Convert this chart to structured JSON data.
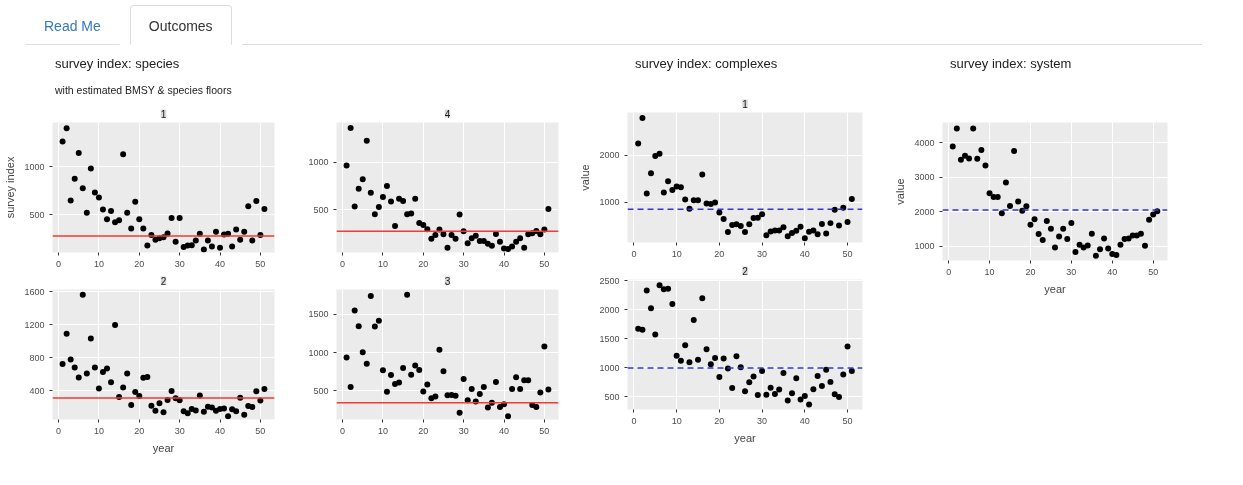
{
  "chart_data": [
    {
      "type": "scatter",
      "title": "1",
      "annotations": [
        "Read Me",
        "Outcomes",
        "survey index: species",
        "with estimated BMSY & species floors"
      ],
      "ylabel": "survey index",
      "marker": "circle",
      "grid": true,
      "xlim": [
        -1.5,
        53.5
      ],
      "xticks": [
        0,
        10,
        20,
        30,
        40,
        50
      ],
      "ylim": [
        110,
        1460
      ],
      "yticks": [
        500,
        1000
      ],
      "x": [
        1,
        2,
        3,
        4,
        5,
        6,
        7,
        8,
        9,
        10,
        11,
        12,
        13,
        14,
        15,
        16,
        17,
        18,
        19,
        20,
        21,
        22,
        23,
        24,
        25,
        26,
        27,
        28,
        29,
        30,
        31,
        32,
        33,
        34,
        35,
        36,
        37,
        38,
        39,
        40,
        41,
        42,
        43,
        44,
        45,
        46,
        47,
        48,
        49,
        50,
        51
      ],
      "series": [
        {
          "color": "#000000",
          "values": [
            1262,
            1400,
            649,
            877,
            1142,
            778,
            523,
            983,
            732,
            682,
            556,
            454,
            540,
            424,
            444,
            1129,
            523,
            358,
            636,
            454,
            358,
            182,
            291,
            242,
            258,
            268,
            308,
            467,
            222,
            467,
            166,
            182,
            185,
            235,
            305,
            142,
            235,
            172,
            325,
            159,
            298,
            305,
            172,
            348,
            242,
            325,
            589,
            235,
            646,
            291,
            563
          ]
        }
      ],
      "ref_lines": [
        {
          "axis": "y",
          "value": 282,
          "color": "#f03c32",
          "line_style": "solid"
        }
      ]
    },
    {
      "type": "scatter",
      "title": "4",
      "marker": "circle",
      "grid": true,
      "xlim": [
        -1.5,
        53.5
      ],
      "xticks": [
        0,
        10,
        20,
        30,
        40,
        50
      ],
      "ylim": [
        50,
        1416
      ],
      "yticks": [
        500,
        1000
      ],
      "x": [
        1,
        2,
        3,
        4,
        5,
        6,
        7,
        8,
        9,
        10,
        11,
        12,
        13,
        14,
        15,
        16,
        17,
        18,
        19,
        20,
        21,
        22,
        23,
        24,
        25,
        26,
        27,
        28,
        29,
        30,
        31,
        32,
        33,
        34,
        35,
        36,
        37,
        38,
        39,
        40,
        41,
        42,
        43,
        44,
        45,
        46,
        47,
        48,
        49,
        50,
        51
      ],
      "series": [
        {
          "color": "#000000",
          "values": [
            963,
            1359,
            534,
            721,
            819,
            1225,
            678,
            453,
            527,
            634,
            748,
            587,
            329,
            614,
            591,
            453,
            460,
            614,
            359,
            339,
            295,
            195,
            235,
            292,
            242,
            101,
            235,
            195,
            450,
            272,
            148,
            201,
            225,
            171,
            171,
            141,
            121,
            245,
            164,
            91,
            87,
            114,
            164,
            201,
            101,
            242,
            252,
            275,
            242,
            292,
            507
          ]
        }
      ],
      "ref_lines": [
        {
          "axis": "y",
          "value": 272,
          "color": "#f03c32",
          "line_style": "solid"
        }
      ]
    },
    {
      "type": "scatter",
      "title": "2",
      "xlabel": "year",
      "marker": "circle",
      "grid": true,
      "xlim": [
        -1.5,
        53.5
      ],
      "xticks": [
        0,
        10,
        20,
        30,
        40,
        50
      ],
      "ylim": [
        50,
        1625
      ],
      "yticks": [
        400,
        800,
        1200,
        1600
      ],
      "x": [
        1,
        2,
        3,
        4,
        5,
        6,
        7,
        8,
        9,
        10,
        11,
        12,
        13,
        14,
        15,
        16,
        17,
        18,
        19,
        20,
        21,
        22,
        23,
        24,
        25,
        26,
        27,
        28,
        29,
        30,
        31,
        32,
        33,
        34,
        35,
        36,
        37,
        38,
        39,
        40,
        41,
        42,
        43,
        44,
        45,
        46,
        47,
        48,
        49,
        50,
        51
      ],
      "series": [
        {
          "color": "#000000",
          "values": [
            723,
            1089,
            778,
            680,
            560,
            1561,
            606,
            1031,
            680,
            427,
            626,
            669,
            501,
            1195,
            322,
            439,
            606,
            225,
            384,
            334,
            556,
            564,
            217,
            155,
            248,
            139,
            287,
            396,
            307,
            283,
            151,
            127,
            178,
            159,
            342,
            143,
            205,
            194,
            155,
            178,
            182,
            88,
            174,
            151,
            314,
            108,
            213,
            201,
            392,
            279,
            419
          ]
        }
      ],
      "ref_lines": [
        {
          "axis": "y",
          "value": 310,
          "color": "#f03c32",
          "line_style": "solid"
        }
      ]
    },
    {
      "type": "scatter",
      "title": "3",
      "marker": "circle",
      "grid": true,
      "xlim": [
        -1.5,
        53.5
      ],
      "xticks": [
        0,
        10,
        20,
        30,
        40,
        50
      ],
      "ylim": [
        125,
        1825
      ],
      "yticks": [
        500,
        1000,
        1500
      ],
      "x": [
        1,
        2,
        3,
        4,
        5,
        6,
        7,
        8,
        9,
        10,
        11,
        12,
        13,
        14,
        15,
        16,
        17,
        18,
        19,
        20,
        21,
        22,
        23,
        24,
        25,
        26,
        27,
        28,
        29,
        30,
        31,
        32,
        33,
        34,
        35,
        36,
        37,
        38,
        39,
        40,
        41,
        42,
        43,
        44,
        45,
        46,
        47,
        48,
        49,
        50,
        51
      ],
      "series": [
        {
          "color": "#000000",
          "values": [
            937,
            551,
            1550,
            1344,
            1004,
            853,
            1739,
            1340,
            1416,
            769,
            488,
            706,
            588,
            609,
            798,
            1756,
            710,
            832,
            773,
            492,
            584,
            404,
            425,
            1038,
            756,
            441,
            446,
            437,
            214,
            656,
            378,
            525,
            362,
            458,
            551,
            282,
            345,
            614,
            290,
            324,
            168,
            525,
            677,
            525,
            639,
            639,
            315,
            290,
            479,
            1080,
            517
          ]
        }
      ],
      "ref_lines": [
        {
          "axis": "y",
          "value": 345,
          "color": "#f03c32",
          "line_style": "solid"
        }
      ]
    },
    {
      "type": "scatter",
      "title": "1",
      "annotations": [
        "survey index: complexes"
      ],
      "ylabel": "value",
      "marker": "circle",
      "grid": true,
      "xlim": [
        -1.5,
        53.5
      ],
      "xticks": [
        0,
        10,
        20,
        30,
        40,
        50
      ],
      "ylim": [
        150,
        2900
      ],
      "yticks": [
        1000,
        2000
      ],
      "x": [
        1,
        2,
        3,
        4,
        5,
        6,
        7,
        8,
        9,
        10,
        11,
        12,
        13,
        14,
        15,
        16,
        17,
        18,
        19,
        20,
        21,
        22,
        23,
        24,
        25,
        26,
        27,
        28,
        29,
        30,
        31,
        32,
        33,
        34,
        35,
        36,
        37,
        38,
        39,
        40,
        41,
        42,
        43,
        44,
        45,
        46,
        47,
        48,
        49,
        50,
        51
      ],
      "series": [
        {
          "color": "#000000",
          "values": [
            2245,
            2786,
            1189,
            1616,
            1981,
            2025,
            1208,
            1447,
            1258,
            1333,
            1321,
            1057,
            862,
            1044,
            1044,
            1591,
            975,
            962,
            994,
            786,
            648,
            371,
            522,
            535,
            497,
            371,
            535,
            667,
            673,
            748,
            302,
            384,
            402,
            402,
            472,
            283,
            352,
            396,
            484,
            239,
            377,
            402,
            327,
            541,
            340,
            560,
            843,
            509,
            887,
            585,
            1069
          ]
        }
      ],
      "ref_lines": [
        {
          "axis": "y",
          "value": 855,
          "color": "#3535d0",
          "line_style": "dashed"
        }
      ]
    },
    {
      "type": "scatter",
      "title": "2",
      "xlabel": "year",
      "marker": "circle",
      "grid": true,
      "xlim": [
        -1.5,
        53.5
      ],
      "xticks": [
        0,
        10,
        20,
        30,
        40,
        50
      ],
      "ylim": [
        280,
        2520
      ],
      "yticks": [
        500,
        1000,
        1500,
        2000,
        2500
      ],
      "x": [
        1,
        2,
        3,
        4,
        5,
        6,
        7,
        8,
        9,
        10,
        11,
        12,
        13,
        14,
        15,
        16,
        17,
        18,
        19,
        20,
        21,
        22,
        23,
        24,
        25,
        26,
        27,
        28,
        29,
        30,
        31,
        32,
        33,
        34,
        35,
        36,
        37,
        38,
        39,
        40,
        41,
        42,
        43,
        44,
        45,
        46,
        47,
        48,
        49,
        50,
        51
      ],
      "series": [
        {
          "color": "#000000",
          "values": [
            1670,
            1655,
            2330,
            2025,
            1574,
            2421,
            2350,
            2360,
            2096,
            1208,
            1122,
            1386,
            1096,
            1822,
            1137,
            2198,
            1320,
            1061,
            1168,
            838,
            1157,
            985,
            650,
            1198,
            1010,
            594,
            751,
            848,
            528,
            944,
            533,
            655,
            548,
            624,
            909,
            437,
            558,
            817,
            452,
            513,
            365,
            629,
            858,
            685,
            964,
            756,
            543,
            497,
            883,
            1365,
            944
          ]
        }
      ],
      "ref_lines": [
        {
          "axis": "y",
          "value": 995,
          "color": "#3535d0",
          "line_style": "dashed"
        }
      ]
    },
    {
      "type": "scatter",
      "annotations": [
        "survey index: system"
      ],
      "xlabel": "year",
      "ylabel": "value",
      "marker": "circle",
      "grid": true,
      "xlim": [
        -1.5,
        53.5
      ],
      "xticks": [
        0,
        10,
        20,
        30,
        40,
        50
      ],
      "ylim": [
        580,
        4585
      ],
      "yticks": [
        1000,
        2000,
        3000,
        4000
      ],
      "x": [
        1,
        2,
        3,
        4,
        5,
        6,
        7,
        8,
        9,
        10,
        11,
        12,
        13,
        14,
        15,
        16,
        17,
        18,
        19,
        20,
        21,
        22,
        23,
        24,
        25,
        26,
        27,
        28,
        29,
        30,
        31,
        32,
        33,
        34,
        35,
        36,
        37,
        38,
        39,
        40,
        41,
        42,
        43,
        44,
        45,
        46,
        47,
        48,
        49,
        50,
        51
      ],
      "series": [
        {
          "color": "#000000",
          "values": [
            3889,
            4411,
            3503,
            3623,
            3540,
            4411,
            3531,
            3788,
            3338,
            2531,
            2421,
            2421,
            1954,
            2843,
            2165,
            3760,
            2293,
            2027,
            2155,
            1614,
            1779,
            1348,
            1174,
            1724,
            1504,
            954,
            1275,
            1504,
            1202,
            1669,
            826,
            1037,
            954,
            1018,
            1358,
            716,
            908,
            1220,
            927,
            771,
            743,
            1037,
            1202,
            1220,
            1303,
            1303,
            1358,
            1009,
            1761,
            1917,
            2009
          ]
        }
      ],
      "ref_lines": [
        {
          "axis": "y",
          "value": 2045,
          "color": "#3535d0",
          "line_style": "dashed"
        }
      ]
    }
  ]
}
